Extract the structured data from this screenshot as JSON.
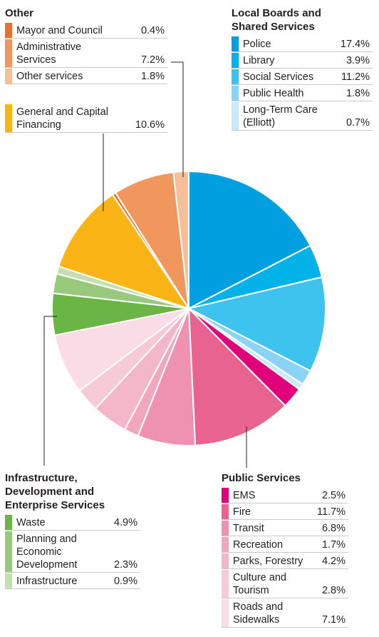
{
  "chart_data": {
    "type": "pie",
    "unit": "%",
    "groups": [
      {
        "title": "Local Boards and\nShared Services",
        "items": [
          {
            "label": "Police",
            "value": 17.4,
            "value_text": "17.4%",
            "color": "#00a0e0"
          },
          {
            "label": "Library",
            "value": 3.9,
            "value_text": "3.9%",
            "color": "#00b2e8"
          },
          {
            "label": "Social Services",
            "value": 11.2,
            "value_text": "11.2%",
            "color": "#3ec3ee"
          },
          {
            "label": "Public Health",
            "value": 1.8,
            "value_text": "1.8%",
            "color": "#8ad3f4"
          },
          {
            "label": "Long-Term Care\n(Elliott)",
            "value": 0.7,
            "value_text": "0.7%",
            "color": "#c7e9f9"
          }
        ]
      },
      {
        "title": "Public Services",
        "items": [
          {
            "label": "EMS",
            "value": 2.5,
            "value_text": "2.5%",
            "color": "#e0007a"
          },
          {
            "label": "Fire",
            "value": 11.7,
            "value_text": "11.7%",
            "color": "#e8638f"
          },
          {
            "label": "Transit",
            "value": 6.8,
            "value_text": "6.8%",
            "color": "#ef91b0"
          },
          {
            "label": "Recreation",
            "value": 1.7,
            "value_text": "1.7%",
            "color": "#f2a7bf"
          },
          {
            "label": "Parks, Forestry",
            "value": 4.2,
            "value_text": "4.2%",
            "color": "#f4b7c9"
          },
          {
            "label": "Culture and\nTourism",
            "value": 2.8,
            "value_text": "2.8%",
            "color": "#f7cad7"
          },
          {
            "label": "Roads and\nSidewalks",
            "value": 7.1,
            "value_text": "7.1%",
            "color": "#f9dce5"
          }
        ]
      },
      {
        "title": "Infrastructure,\nDevelopment and\nEnterprise Services",
        "items": [
          {
            "label": "Waste",
            "value": 4.9,
            "value_text": "4.9%",
            "color": "#6ab545"
          },
          {
            "label": "Planning and\nEconomic\nDevelopment",
            "value": 2.3,
            "value_text": "2.3%",
            "color": "#98c97c"
          },
          {
            "label": "Infrastructure",
            "value": 0.9,
            "value_text": "0.9%",
            "color": "#c4e0b2"
          }
        ]
      },
      {
        "title": "",
        "items": [
          {
            "label": "General and Capital\nFinancing",
            "value": 10.6,
            "value_text": "10.6%",
            "color": "#fbb415"
          }
        ]
      },
      {
        "title": "Other",
        "items": [
          {
            "label": "Mayor and Council",
            "value": 0.4,
            "value_text": "0.4%",
            "color": "#e5722a"
          },
          {
            "label": "Administrative\nServices",
            "value": 7.2,
            "value_text": "7.2%",
            "color": "#f0975e"
          },
          {
            "label": "Other services",
            "value": 1.8,
            "value_text": "1.8%",
            "color": "#f6bf9a"
          }
        ]
      }
    ]
  }
}
